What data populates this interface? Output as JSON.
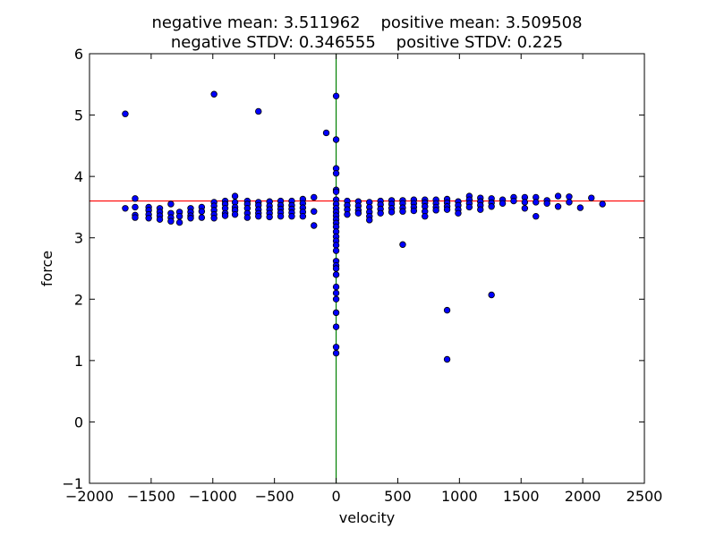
{
  "chart_data": {
    "type": "scatter",
    "title_line1": "negative mean: 3.511962    positive mean: 3.509508",
    "title_line2": "negative STDV: 0.346555    positive STDV: 0.225",
    "xlabel": "velocity",
    "ylabel": "force",
    "xlim": [
      -2000,
      2500
    ],
    "ylim": [
      -1,
      6
    ],
    "xticks": [
      -2000,
      -1500,
      -1000,
      -500,
      0,
      500,
      1000,
      1500,
      2000,
      2500
    ],
    "yticks": [
      -1,
      0,
      1,
      2,
      3,
      4,
      5,
      6
    ],
    "xtick_labels": [
      "−2000",
      "−1500",
      "−1000",
      "−500",
      "0",
      "500",
      "1000",
      "1500",
      "2000",
      "2500"
    ],
    "ytick_labels": [
      "−1",
      "0",
      "1",
      "2",
      "3",
      "4",
      "5",
      "6"
    ],
    "grid": false,
    "hline": {
      "y": 3.6,
      "color": "#ff0000"
    },
    "vline": {
      "x": 0,
      "color": "#008000"
    },
    "marker_color": "#0000ff",
    "points": [
      [
        -1710,
        5.02
      ],
      [
        -990,
        5.34
      ],
      [
        -630,
        5.06
      ],
      [
        -80,
        4.71
      ],
      [
        0,
        5.31
      ],
      [
        0,
        4.6
      ],
      [
        0,
        4.13
      ],
      [
        0,
        4.05
      ],
      [
        0,
        3.78
      ],
      [
        0,
        3.75
      ],
      [
        0,
        3.62
      ],
      [
        0,
        3.55
      ],
      [
        0,
        3.48
      ],
      [
        0,
        3.42
      ],
      [
        0,
        3.36
      ],
      [
        0,
        3.3
      ],
      [
        0,
        3.24
      ],
      [
        0,
        3.18
      ],
      [
        0,
        3.1
      ],
      [
        0,
        3.02
      ],
      [
        0,
        2.95
      ],
      [
        0,
        2.88
      ],
      [
        0,
        2.79
      ],
      [
        0,
        2.62
      ],
      [
        0,
        2.55
      ],
      [
        0,
        2.5
      ],
      [
        0,
        2.4
      ],
      [
        0,
        2.2
      ],
      [
        0,
        2.1
      ],
      [
        0,
        2.0
      ],
      [
        0,
        1.78
      ],
      [
        0,
        1.55
      ],
      [
        0,
        1.22
      ],
      [
        0,
        1.12
      ],
      [
        -1710,
        3.48
      ],
      [
        -1630,
        3.64
      ],
      [
        -1630,
        3.5
      ],
      [
        -1630,
        3.37
      ],
      [
        -1630,
        3.33
      ],
      [
        -1520,
        3.5
      ],
      [
        -1520,
        3.45
      ],
      [
        -1520,
        3.38
      ],
      [
        -1520,
        3.32
      ],
      [
        -1430,
        3.48
      ],
      [
        -1430,
        3.42
      ],
      [
        -1430,
        3.36
      ],
      [
        -1430,
        3.3
      ],
      [
        -1340,
        3.55
      ],
      [
        -1340,
        3.4
      ],
      [
        -1340,
        3.33
      ],
      [
        -1340,
        3.27
      ],
      [
        -1270,
        3.42
      ],
      [
        -1270,
        3.35
      ],
      [
        -1270,
        3.25
      ],
      [
        -1180,
        3.48
      ],
      [
        -1180,
        3.42
      ],
      [
        -1180,
        3.36
      ],
      [
        -1180,
        3.32
      ],
      [
        -1090,
        3.5
      ],
      [
        -1090,
        3.43
      ],
      [
        -1090,
        3.33
      ],
      [
        -990,
        3.58
      ],
      [
        -990,
        3.52
      ],
      [
        -990,
        3.45
      ],
      [
        -990,
        3.38
      ],
      [
        -990,
        3.32
      ],
      [
        -900,
        3.6
      ],
      [
        -900,
        3.55
      ],
      [
        -900,
        3.48
      ],
      [
        -900,
        3.4
      ],
      [
        -900,
        3.36
      ],
      [
        -820,
        3.68
      ],
      [
        -820,
        3.58
      ],
      [
        -820,
        3.5
      ],
      [
        -820,
        3.45
      ],
      [
        -820,
        3.38
      ],
      [
        -720,
        3.6
      ],
      [
        -720,
        3.55
      ],
      [
        -720,
        3.48
      ],
      [
        -720,
        3.4
      ],
      [
        -720,
        3.33
      ],
      [
        -630,
        3.58
      ],
      [
        -630,
        3.53
      ],
      [
        -630,
        3.46
      ],
      [
        -630,
        3.4
      ],
      [
        -630,
        3.35
      ],
      [
        -540,
        3.59
      ],
      [
        -540,
        3.52
      ],
      [
        -540,
        3.46
      ],
      [
        -540,
        3.4
      ],
      [
        -540,
        3.34
      ],
      [
        -450,
        3.6
      ],
      [
        -450,
        3.53
      ],
      [
        -450,
        3.47
      ],
      [
        -450,
        3.41
      ],
      [
        -450,
        3.35
      ],
      [
        -360,
        3.6
      ],
      [
        -360,
        3.53
      ],
      [
        -360,
        3.47
      ],
      [
        -360,
        3.41
      ],
      [
        -360,
        3.35
      ],
      [
        -270,
        3.63
      ],
      [
        -270,
        3.56
      ],
      [
        -270,
        3.49
      ],
      [
        -270,
        3.42
      ],
      [
        -270,
        3.35
      ],
      [
        -180,
        3.66
      ],
      [
        -180,
        3.43
      ],
      [
        -180,
        3.2
      ],
      [
        90,
        3.6
      ],
      [
        90,
        3.53
      ],
      [
        90,
        3.46
      ],
      [
        90,
        3.38
      ],
      [
        180,
        3.59
      ],
      [
        180,
        3.52
      ],
      [
        180,
        3.45
      ],
      [
        180,
        3.4
      ],
      [
        270,
        3.58
      ],
      [
        270,
        3.5
      ],
      [
        270,
        3.42
      ],
      [
        270,
        3.35
      ],
      [
        270,
        3.29
      ],
      [
        360,
        3.6
      ],
      [
        360,
        3.54
      ],
      [
        360,
        3.47
      ],
      [
        360,
        3.4
      ],
      [
        450,
        3.61
      ],
      [
        450,
        3.55
      ],
      [
        450,
        3.48
      ],
      [
        450,
        3.42
      ],
      [
        540,
        3.61
      ],
      [
        540,
        3.56
      ],
      [
        540,
        3.49
      ],
      [
        540,
        3.43
      ],
      [
        540,
        2.89
      ],
      [
        630,
        3.62
      ],
      [
        630,
        3.56
      ],
      [
        630,
        3.5
      ],
      [
        630,
        3.44
      ],
      [
        720,
        3.62
      ],
      [
        720,
        3.57
      ],
      [
        720,
        3.51
      ],
      [
        720,
        3.43
      ],
      [
        720,
        3.35
      ],
      [
        810,
        3.62
      ],
      [
        810,
        3.56
      ],
      [
        810,
        3.5
      ],
      [
        810,
        3.45
      ],
      [
        900,
        3.63
      ],
      [
        900,
        3.57
      ],
      [
        900,
        3.51
      ],
      [
        900,
        3.46
      ],
      [
        900,
        1.82
      ],
      [
        900,
        1.02
      ],
      [
        990,
        3.59
      ],
      [
        990,
        3.53
      ],
      [
        990,
        3.46
      ],
      [
        990,
        3.4
      ],
      [
        1080,
        3.68
      ],
      [
        1080,
        3.62
      ],
      [
        1080,
        3.56
      ],
      [
        1080,
        3.5
      ],
      [
        1170,
        3.65
      ],
      [
        1170,
        3.59
      ],
      [
        1170,
        3.53
      ],
      [
        1170,
        3.46
      ],
      [
        1260,
        3.64
      ],
      [
        1260,
        3.57
      ],
      [
        1260,
        3.51
      ],
      [
        1260,
        2.07
      ],
      [
        1350,
        3.62
      ],
      [
        1350,
        3.56
      ],
      [
        1440,
        3.66
      ],
      [
        1440,
        3.6
      ],
      [
        1530,
        3.66
      ],
      [
        1530,
        3.58
      ],
      [
        1530,
        3.48
      ],
      [
        1620,
        3.66
      ],
      [
        1620,
        3.58
      ],
      [
        1620,
        3.35
      ],
      [
        1710,
        3.61
      ],
      [
        1710,
        3.56
      ],
      [
        1800,
        3.68
      ],
      [
        1800,
        3.51
      ],
      [
        1890,
        3.67
      ],
      [
        1890,
        3.58
      ],
      [
        1980,
        3.49
      ],
      [
        2070,
        3.65
      ],
      [
        2160,
        3.55
      ]
    ]
  }
}
